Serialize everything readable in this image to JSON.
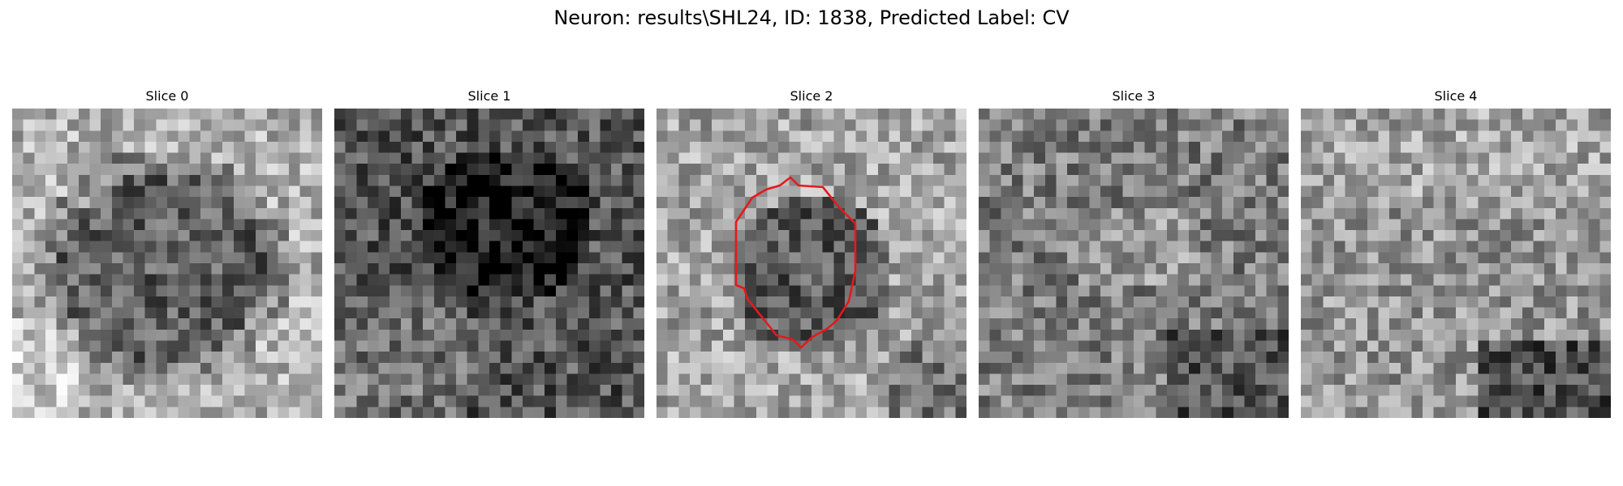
{
  "figure": {
    "title": "Neuron: results\\SHL24, ID: 1838, Predicted Label: CV"
  },
  "panels": [
    {
      "title": "Slice 0",
      "seed": 11,
      "cmap": "gray"
    },
    {
      "title": "Slice 1",
      "seed": 23,
      "cmap": "gray"
    },
    {
      "title": "Slice 2",
      "seed": 37,
      "cmap": "gray",
      "contour_color": "#e41a1c"
    },
    {
      "title": "Slice 3",
      "seed": 51,
      "cmap": "gray"
    },
    {
      "title": "Slice 4",
      "seed": 67,
      "cmap": "gray"
    }
  ]
}
